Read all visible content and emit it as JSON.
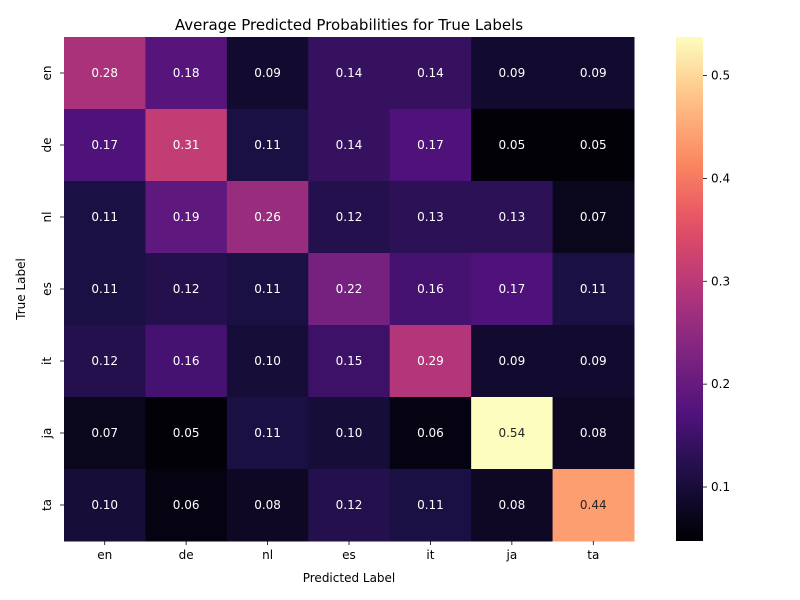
{
  "chart_data": {
    "type": "heatmap",
    "title": "Average Predicted Probabilities for True Labels",
    "xlabel": "Predicted Label",
    "ylabel": "True Label",
    "x_categories": [
      "en",
      "de",
      "nl",
      "es",
      "it",
      "ja",
      "ta"
    ],
    "y_categories": [
      "en",
      "de",
      "nl",
      "es",
      "it",
      "ja",
      "ta"
    ],
    "values": [
      [
        0.28,
        0.18,
        0.09,
        0.14,
        0.14,
        0.09,
        0.09
      ],
      [
        0.17,
        0.31,
        0.11,
        0.14,
        0.17,
        0.05,
        0.05
      ],
      [
        0.11,
        0.19,
        0.26,
        0.12,
        0.13,
        0.13,
        0.07
      ],
      [
        0.11,
        0.12,
        0.11,
        0.22,
        0.16,
        0.17,
        0.11
      ],
      [
        0.12,
        0.16,
        0.1,
        0.15,
        0.29,
        0.09,
        0.09
      ],
      [
        0.07,
        0.05,
        0.11,
        0.1,
        0.06,
        0.54,
        0.08
      ],
      [
        0.1,
        0.06,
        0.08,
        0.12,
        0.11,
        0.08,
        0.44
      ]
    ],
    "value_format": "0.00",
    "colormap": "magma",
    "color_range": [
      0.0475,
      0.5375
    ],
    "colorbar_ticks": [
      "0.1",
      "0.2",
      "0.3",
      "0.4",
      "0.5"
    ],
    "legend": "right"
  }
}
